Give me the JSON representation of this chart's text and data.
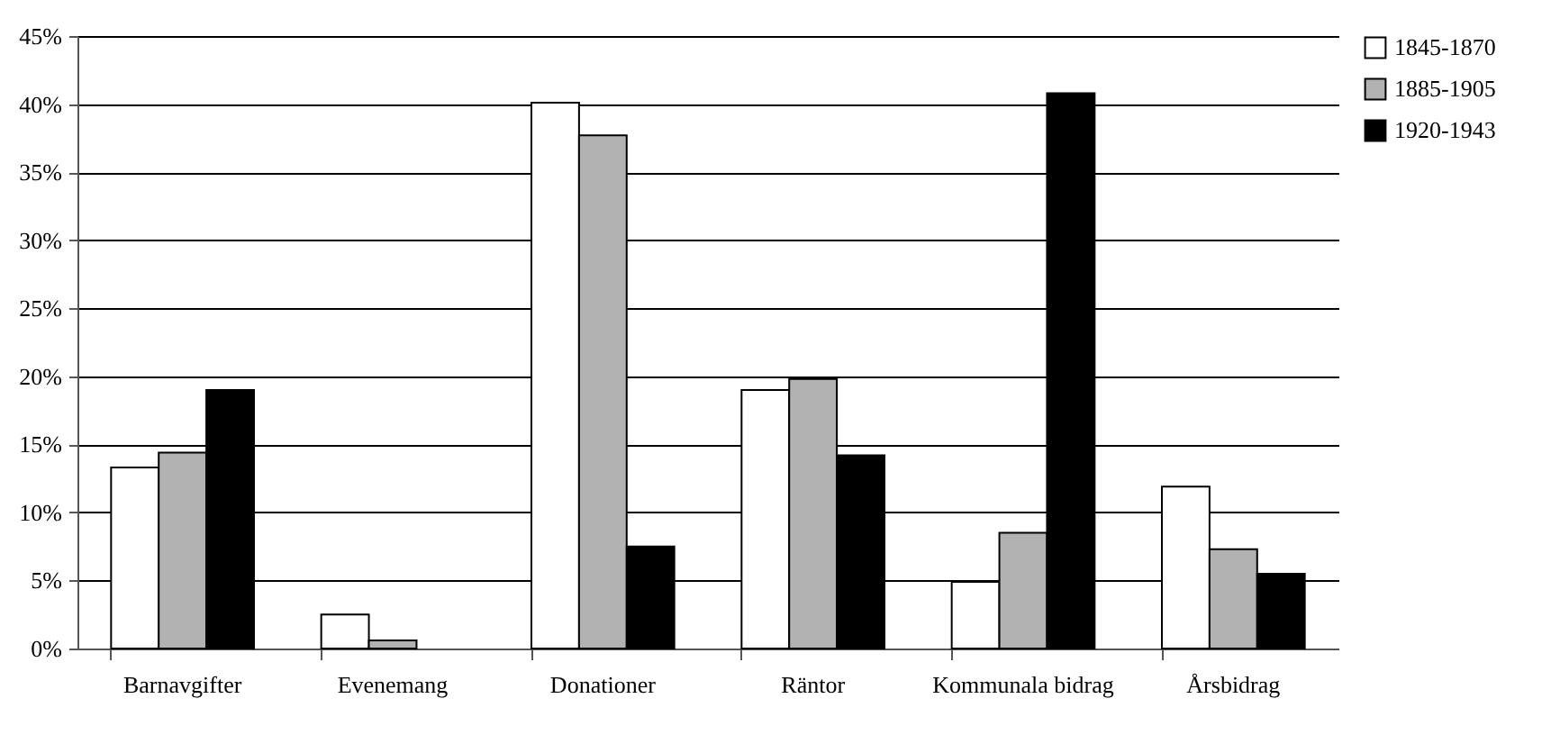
{
  "chart_data": {
    "type": "bar",
    "categories": [
      "Barnavgifter",
      "Evenemang",
      "Donationer",
      "Räntor",
      "Kommunala bidrag",
      "Årsbidrag"
    ],
    "series": [
      {
        "name": "1845-1870",
        "color": "#ffffff",
        "values": [
          13.3,
          2.5,
          40.1,
          19.0,
          4.9,
          11.9
        ]
      },
      {
        "name": "1885-1905",
        "color": "#b2b2b2",
        "values": [
          14.4,
          0.6,
          37.7,
          19.8,
          8.5,
          7.3
        ]
      },
      {
        "name": "1920-1943",
        "color": "#000000",
        "values": [
          19.0,
          null,
          7.5,
          14.2,
          40.8,
          5.5
        ]
      }
    ],
    "ylim": [
      0,
      45
    ],
    "yticks": [
      {
        "value": 0,
        "label": "0%"
      },
      {
        "value": 5,
        "label": "5%"
      },
      {
        "value": 10,
        "label": "10%"
      },
      {
        "value": 15,
        "label": "15%"
      },
      {
        "value": 20,
        "label": "20%"
      },
      {
        "value": 25,
        "label": "25%"
      },
      {
        "value": 30,
        "label": "30%"
      },
      {
        "value": 35,
        "label": "35%"
      },
      {
        "value": 40,
        "label": "40%"
      },
      {
        "value": 45,
        "label": "45%"
      }
    ],
    "grid": "y",
    "legend": "right"
  }
}
